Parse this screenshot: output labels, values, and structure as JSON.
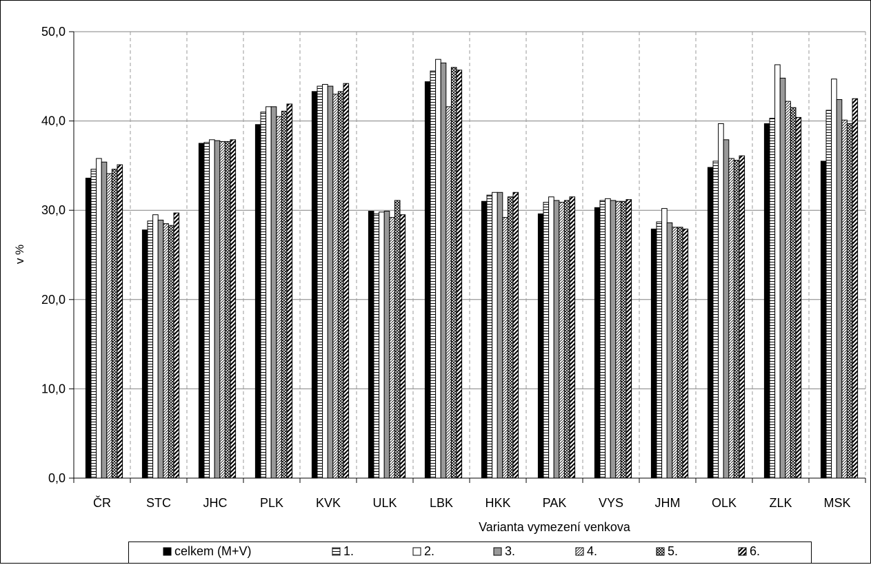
{
  "chart_data": {
    "type": "bar",
    "title": "",
    "xlabel": "Varianta vymezení venkova",
    "ylabel": "v %",
    "ylim": [
      0,
      50
    ],
    "y_ticks": [
      "0,0",
      "10,0",
      "20,0",
      "30,0",
      "40,0",
      "50,0"
    ],
    "grid": true,
    "legend_position": "bottom",
    "categories": [
      "ČR",
      "STC",
      "JHC",
      "PLK",
      "KVK",
      "ULK",
      "LBK",
      "HKK",
      "PAK",
      "VYS",
      "JHM",
      "OLK",
      "ZLK",
      "MSK"
    ],
    "series": [
      {
        "name": "celkem (M+V)",
        "pattern": "solid-black",
        "values": [
          33.6,
          27.8,
          37.5,
          39.6,
          43.3,
          29.9,
          44.4,
          31.0,
          29.6,
          30.3,
          27.9,
          34.8,
          39.7,
          35.5
        ]
      },
      {
        "name": "1.",
        "pattern": "hlines",
        "values": [
          34.6,
          28.8,
          37.6,
          41.0,
          43.9,
          29.6,
          45.6,
          31.7,
          30.9,
          31.1,
          28.7,
          35.5,
          40.3,
          41.2
        ]
      },
      {
        "name": "2.",
        "pattern": "white",
        "values": [
          35.8,
          29.5,
          37.9,
          41.6,
          44.1,
          29.8,
          46.9,
          32.0,
          31.5,
          31.3,
          30.2,
          39.7,
          46.3,
          44.7
        ]
      },
      {
        "name": "3.",
        "pattern": "gray",
        "values": [
          35.4,
          28.9,
          37.8,
          41.6,
          43.9,
          29.9,
          46.5,
          32.0,
          31.1,
          31.1,
          28.6,
          37.9,
          44.8,
          42.4
        ]
      },
      {
        "name": "4.",
        "pattern": "diag",
        "values": [
          34.1,
          28.5,
          37.7,
          40.5,
          43.0,
          29.2,
          41.6,
          29.2,
          30.9,
          31.0,
          28.1,
          35.8,
          42.2,
          40.1
        ]
      },
      {
        "name": "5.",
        "pattern": "cross",
        "values": [
          34.6,
          28.3,
          37.7,
          41.1,
          43.3,
          31.1,
          46.0,
          31.5,
          31.1,
          31.0,
          28.1,
          35.6,
          41.5,
          39.7
        ]
      },
      {
        "name": "6.",
        "pattern": "thickdiag",
        "values": [
          35.1,
          29.7,
          37.9,
          41.9,
          44.2,
          29.5,
          45.7,
          32.0,
          31.5,
          31.2,
          27.9,
          36.1,
          40.4,
          42.5
        ]
      }
    ]
  }
}
